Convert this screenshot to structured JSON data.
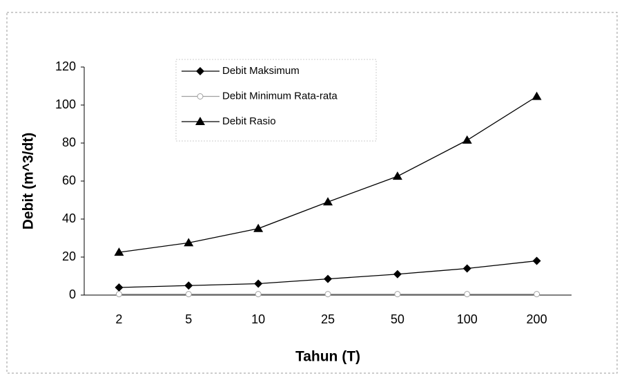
{
  "chart_data": {
    "type": "line",
    "x_label": "Tahun (T)",
    "y_label": "Debit (m^3/dt)",
    "categories": [
      "2",
      "5",
      "10",
      "25",
      "50",
      "100",
      "200"
    ],
    "series": [
      {
        "name": "Debit Maksimum",
        "color": "#000000",
        "marker": "diamond",
        "values": [
          4,
          5,
          6,
          8.5,
          11,
          14,
          18
        ]
      },
      {
        "name": "Debit Minimum Rata-rata",
        "color": "#a0a0a0",
        "marker": "circle",
        "values": [
          0.5,
          0.5,
          0.5,
          0.5,
          0.5,
          0.5,
          0.5
        ]
      },
      {
        "name": "Debit Rasio",
        "color": "#000000",
        "marker": "triangle",
        "values": [
          22.5,
          27.5,
          35,
          49,
          62.5,
          81.5,
          104.5
        ]
      }
    ],
    "ylim": [
      0,
      120
    ],
    "yticks": [
      0,
      20,
      40,
      60,
      80,
      100,
      120
    ],
    "grid": false,
    "legend": "upper-left"
  }
}
